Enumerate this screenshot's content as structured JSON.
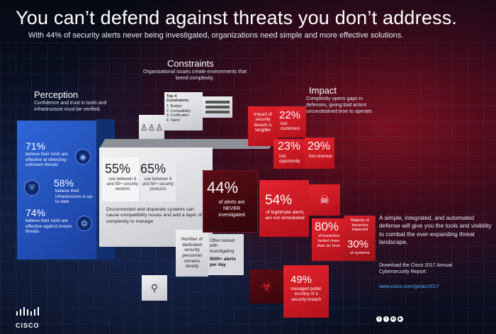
{
  "header": {
    "title": "You can’t defend against threats you don’t address.",
    "subtitle": "With 44% of security alerts never being investigated, organizations need simple and more effective solutions."
  },
  "perception": {
    "title": "Perception",
    "desc": "Confidence and trust in tools and infrastructure must be verified.",
    "stats": [
      {
        "value": "71%",
        "text": "believe their tools are effective at detecting unknown threats",
        "icon": "brain-icon"
      },
      {
        "value": "58%",
        "text": "believe their infrastructure is up-to-date",
        "icon": "shield-icon"
      },
      {
        "value": "74%",
        "text": "believe their tools are effective against known threats",
        "icon": "bug-icon"
      }
    ]
  },
  "constraints": {
    "title": "Constraints",
    "desc": "Organizational issues create environments that breed complexity.",
    "top4_heading": "Top 4 Constraints:",
    "top4_items": [
      "1. Budget",
      "2. Compatibility",
      "3. Certification",
      "4. Talent"
    ],
    "stat_vendors_value": "55%",
    "stat_vendors_text": "use between 6 and 50+ security vendors",
    "stat_products_value": "65%",
    "stat_products_text": "use between 6 and 50+ security products",
    "disconnected_text": "Disconnected and disparate systems can cause compatibility issues and add a layer of complexity to manage",
    "personnel_text": "Number of dedicated security personnel remains steady",
    "often_tasked_text": "Often tasked with investigating",
    "alerts_per_day": "5000+ alerts per day"
  },
  "center": {
    "value": "44%",
    "text": "of alerts are NEVER investigated"
  },
  "impact": {
    "title": "Impact",
    "desc": "Complexity opens gaps in defenses, giving bad actors unconstrained time to operate.",
    "tangible_text": "Impact of security breach is tangible",
    "lost_customers_value": "22%",
    "lost_customers_text": "lost customers",
    "lost_opportunity_value": "23%",
    "lost_opportunity_text": "lost opportunity",
    "lost_revenue_value": "29%",
    "lost_revenue_text": "lost revenue",
    "legit_value": "54%",
    "legit_text": "of legitimate alerts are not remediated",
    "breach_hour_value": "80%",
    "breach_hour_text": "of breaches lasted more than an hour",
    "majority_text": "Majority of breaches impacted",
    "systems_value": "30%",
    "systems_text": "of systems",
    "public_value": "49%",
    "public_text": "managed public scrutiny of a security breach"
  },
  "cta": {
    "text": "A simple, integrated, and automated defense will give you the tools and visibility to combat the ever-expanding threat landscape.",
    "download": "Download the Cisco 2017 Annual Cybersecurity Report:",
    "url": "www.cisco.com/go/acr2017"
  },
  "brand": {
    "logo_text": "CISCO",
    "accent_blue": "#2f66d8",
    "accent_red": "#e3232d",
    "social_icons": [
      "facebook-icon",
      "twitter-icon",
      "linkedin-icon",
      "youtube-icon"
    ]
  }
}
